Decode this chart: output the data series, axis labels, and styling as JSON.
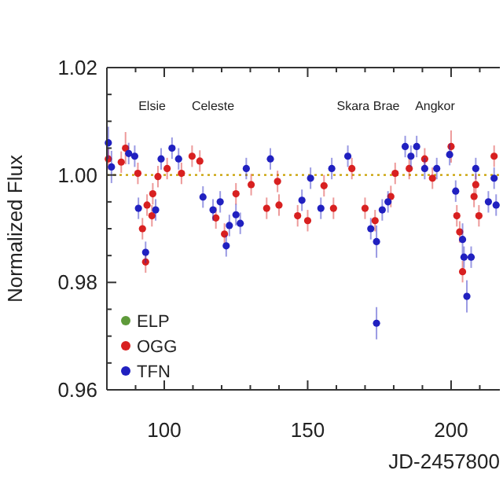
{
  "chart_data": {
    "type": "scatter",
    "xlabel": "JD-2457800",
    "ylabel": "Normalized Flux",
    "xlim": [
      80,
      217
    ],
    "ylim": [
      0.96,
      1.02
    ],
    "xticks": [
      {
        "value": 80,
        "label": null
      },
      {
        "value": 90,
        "label": null
      },
      100,
      {
        "value": 110,
        "label": null
      },
      {
        "value": 120,
        "label": null
      },
      {
        "value": 130,
        "label": null
      },
      {
        "value": 140,
        "label": null
      },
      150,
      {
        "value": 160,
        "label": null
      },
      {
        "value": 170,
        "label": null
      },
      {
        "value": 180,
        "label": null
      },
      {
        "value": 190,
        "label": null
      },
      200,
      {
        "value": 210,
        "label": null
      }
    ],
    "yticks": [
      0.96,
      {
        "value": 0.965,
        "label": null
      },
      {
        "value": 0.97,
        "label": null
      },
      {
        "value": 0.975,
        "label": null
      },
      0.98,
      {
        "value": 0.985,
        "label": null
      },
      {
        "value": 0.99,
        "label": null
      },
      {
        "value": 0.995,
        "label": null
      },
      {
        "value": 1,
        "label": "1.00"
      },
      {
        "value": 1.005,
        "label": null
      },
      {
        "value": 1.01,
        "label": null
      },
      {
        "value": 1.015,
        "label": null
      },
      1.02
    ],
    "marker": "circle",
    "legend": "bottom left",
    "ref_lines": [
      {
        "axis": "y",
        "value": 1,
        "color": "#c8a000",
        "line_style": "dotted"
      }
    ],
    "annotations": [
      "Elsie",
      "Celeste",
      "Skara Brae",
      "Angkor"
    ],
    "series": [
      {
        "name": "ELP",
        "color": "#5e9a3a"
      },
      {
        "name": "OGG",
        "color": "#d82020",
        "x": [
          80.5,
          85,
          86.5,
          90.8,
          92.4,
          93.5,
          94,
          95.7,
          96,
          97.8,
          101,
          106,
          109.7,
          112.4,
          118,
          121,
          125,
          130.3,
          135.7,
          139.5,
          140,
          146.5,
          150,
          155.7,
          159,
          165.4,
          170,
          173.5,
          179,
          180.5,
          185.4,
          190.8,
          193.5,
          200,
          202,
          203,
          204,
          208,
          208.6,
          209.7,
          215
        ],
        "values": [
          1.003,
          1.0024,
          1.005,
          1.0003,
          0.99,
          0.9838,
          0.9944,
          0.9924,
          0.9965,
          0.9997,
          1.0012,
          1.0003,
          1.0035,
          1.0026,
          0.992,
          0.989,
          0.9965,
          0.9982,
          0.9938,
          0.9988,
          0.9944,
          0.9924,
          0.9915,
          0.998,
          0.9938,
          1.0012,
          0.9938,
          0.9915,
          0.996,
          1.0003,
          1.0012,
          1.003,
          0.9994,
          1.0053,
          0.9924,
          0.9894,
          0.982,
          0.996,
          0.9982,
          0.9924,
          1.0035
        ],
        "errors": [
          0.002,
          0.002,
          0.003,
          0.002,
          0.002,
          0.002,
          0.002,
          0.002,
          0.002,
          0.002,
          0.002,
          0.002,
          0.002,
          0.002,
          0.002,
          0.002,
          0.002,
          0.002,
          0.002,
          0.002,
          0.002,
          0.002,
          0.002,
          0.002,
          0.002,
          0.002,
          0.002,
          0.002,
          0.002,
          0.002,
          0.002,
          0.002,
          0.002,
          0.003,
          0.002,
          0.002,
          0.002,
          0.002,
          0.002,
          0.002,
          0.002
        ]
      },
      {
        "name": "TFN",
        "color": "#2020c0",
        "x": [
          80.5,
          81.6,
          87.6,
          89.7,
          91,
          93.5,
          97,
          98.9,
          102.7,
          105,
          113.5,
          117,
          119.5,
          121.6,
          122.7,
          125,
          126.5,
          128.6,
          137,
          148,
          151,
          154.6,
          158.4,
          164,
          172,
          174,
          174,
          176,
          178,
          184,
          186,
          188,
          190.8,
          195,
          199.5,
          201.6,
          204,
          204.5,
          205.5,
          207,
          208.6,
          213,
          215,
          215.7
        ],
        "values": [
          1.006,
          1.0015,
          1.004,
          1.0035,
          0.9938,
          0.9856,
          0.9935,
          1.003,
          1.005,
          1.003,
          0.9959,
          0.9935,
          0.995,
          0.9868,
          0.9906,
          0.9926,
          0.991,
          1.0012,
          1.003,
          0.9953,
          0.9994,
          0.9938,
          1.0012,
          1.0035,
          0.99,
          0.9876,
          0.9724,
          0.9935,
          0.995,
          1.0053,
          1.0035,
          1.0053,
          1.0012,
          1.0012,
          1.0038,
          0.997,
          0.988,
          0.9847,
          0.9774,
          0.9847,
          1.0012,
          0.995,
          0.9994,
          0.9944
        ],
        "errors": [
          0.003,
          0.003,
          0.002,
          0.002,
          0.002,
          0.002,
          0.002,
          0.002,
          0.002,
          0.002,
          0.002,
          0.002,
          0.002,
          0.002,
          0.002,
          0.002,
          0.002,
          0.002,
          0.002,
          0.002,
          0.002,
          0.002,
          0.002,
          0.002,
          0.002,
          0.003,
          0.003,
          0.002,
          0.002,
          0.002,
          0.002,
          0.002,
          0.002,
          0.002,
          0.002,
          0.002,
          0.003,
          0.002,
          0.003,
          0.002,
          0.002,
          0.002,
          0.002,
          0.002
        ]
      }
    ]
  }
}
